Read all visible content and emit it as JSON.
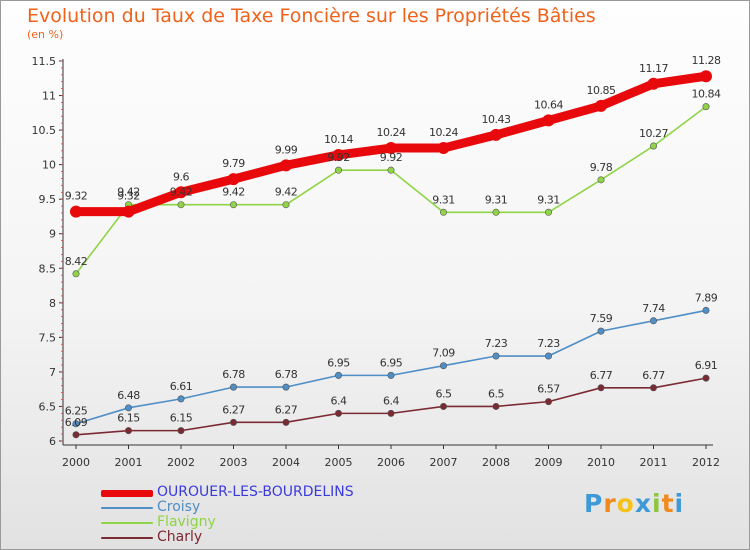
{
  "title": "Evolution du Taux de Taxe Foncière sur les Propriétés Bâties",
  "unit_label": "(en %)",
  "chart_data": {
    "type": "line",
    "x": [
      "2000",
      "2001",
      "2002",
      "2003",
      "2004",
      "2005",
      "2006",
      "2007",
      "2008",
      "2009",
      "2010",
      "2011",
      "2012"
    ],
    "ylim": [
      6,
      11.5
    ],
    "yticks": [
      "6",
      "6.5",
      "7",
      "7.5",
      "8",
      "8.5",
      "9",
      "9.5",
      "10",
      "10.5",
      "11",
      "11.5"
    ],
    "grid": false,
    "legend_position": "bottom-left",
    "series": [
      {
        "name": "OUROUER-LES-BOURDELINS",
        "color": "#e8090c",
        "values": [
          9.32,
          9.32,
          9.6,
          9.79,
          9.99,
          10.14,
          10.24,
          10.24,
          10.43,
          10.64,
          10.85,
          11.17,
          11.28
        ],
        "labels": [
          "9.32",
          "9.32",
          "9.6",
          "9.79",
          "9.99",
          "10.14",
          "10.24",
          "10.24",
          "10.43",
          "10.64",
          "10.85",
          "11.17",
          "11.28"
        ]
      },
      {
        "name": "Croisy",
        "color": "#4f8ec6",
        "values": [
          6.25,
          6.48,
          6.61,
          6.78,
          6.78,
          6.95,
          6.95,
          7.09,
          7.23,
          7.23,
          7.59,
          7.74,
          7.89
        ],
        "labels": [
          "6.25",
          "6.48",
          "6.61",
          "6.78",
          "6.78",
          "6.95",
          "6.95",
          "7.09",
          "7.23",
          "7.23",
          "7.59",
          "7.74",
          "7.89"
        ]
      },
      {
        "name": "Flavigny",
        "color": "#8fd446",
        "values": [
          8.42,
          9.42,
          9.42,
          9.42,
          9.42,
          9.92,
          9.92,
          9.31,
          9.31,
          9.31,
          9.78,
          10.27,
          10.84
        ],
        "labels": [
          "8.42",
          "9.42",
          "9.42",
          "9.42",
          "9.42",
          "9.92",
          "9.92",
          "9.31",
          "9.31",
          "9.31",
          "9.78",
          "10.27",
          "10.84"
        ]
      },
      {
        "name": "Charly",
        "color": "#7a2a32",
        "values": [
          6.09,
          6.15,
          6.15,
          6.27,
          6.27,
          6.4,
          6.4,
          6.5,
          6.5,
          6.57,
          6.77,
          6.77,
          6.91
        ],
        "labels": [
          "6.09",
          "6.15",
          "6.15",
          "6.27",
          "6.27",
          "6.4",
          "6.4",
          "6.5",
          "6.5",
          "6.57",
          "6.77",
          "6.77",
          "6.91"
        ]
      }
    ]
  },
  "logo": {
    "text": "Proxiti",
    "letters": [
      "P",
      "r",
      "o",
      "x",
      "i",
      "t",
      "i"
    ],
    "colors": [
      "#3d9ad6",
      "#f08a1c",
      "#f5c21b",
      "#3d9ad6",
      "#8cc63f",
      "#f08a1c",
      "#3d9ad6"
    ]
  }
}
